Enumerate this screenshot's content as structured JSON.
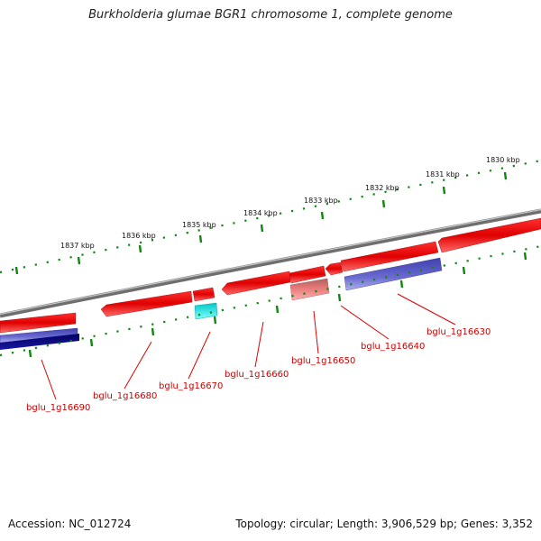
{
  "title": "Burkholderia glumae BGR1 chromosome 1, complete genome",
  "footer": {
    "accession": "Accession: NC_012724",
    "topology": "Topology: circular; Length: 3,906,529 bp; Genes: 3,352"
  },
  "scale_labels": [
    "1830 kbp",
    "1831 kbp",
    "1832 kbp",
    "1833 kbp",
    "1834 kbp",
    "1835 kbp",
    "1836 kbp",
    "1837 kbp"
  ],
  "gene_labels": [
    "bglu_1g16630",
    "bglu_1g16640",
    "bglu_1g16650",
    "bglu_1g16660",
    "bglu_1g16670",
    "bglu_1g16680",
    "bglu_1g16690"
  ],
  "colors": {
    "forward_cds": "#ee0000",
    "reverse_cds": "#6060cc",
    "reverse_dark": "#000080",
    "rna": "#00e0e0",
    "pseudo": "#e88080",
    "backbone": "#808080",
    "ticks": "#118811",
    "label": "#cc0000"
  }
}
